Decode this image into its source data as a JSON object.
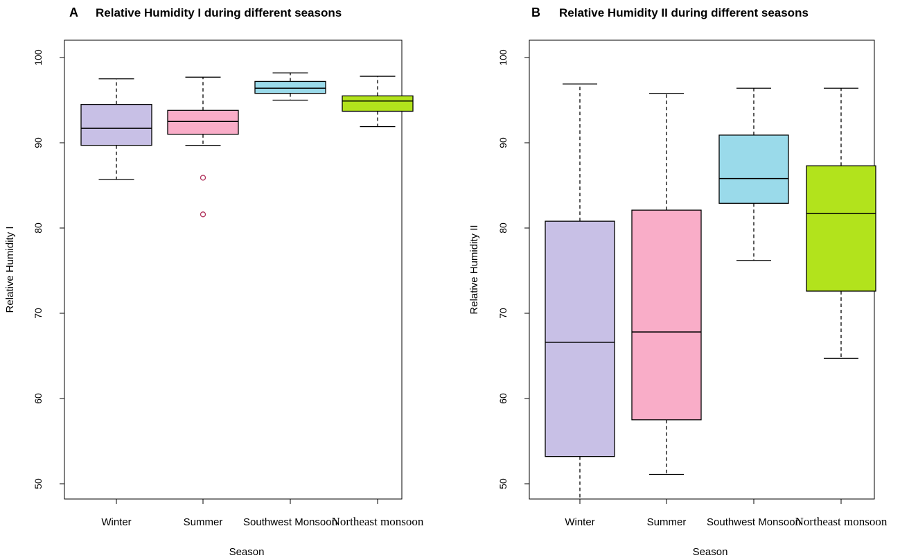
{
  "chart_data": [
    {
      "panel": "A",
      "type": "boxplot",
      "title": "Relative Humidity I during different seasons",
      "xlabel": "Season",
      "ylabel": "Relative Humidity I",
      "ylim": [
        47.5,
        101
      ],
      "yticks": [
        50,
        60,
        70,
        80,
        90,
        100
      ],
      "categories": [
        "Winter",
        "Summer",
        "Southwest Monsoon",
        "Northeast monsoon"
      ],
      "colors": [
        "#c8c0e6",
        "#f9adc8",
        "#9adaea",
        "#b2e31c"
      ],
      "boxes": [
        {
          "whisker_low": 85.7,
          "q1": 89.7,
          "median": 91.7,
          "q3": 94.5,
          "whisker_high": 97.5,
          "outliers": []
        },
        {
          "whisker_low": 89.7,
          "q1": 91.0,
          "median": 92.5,
          "q3": 93.8,
          "whisker_high": 97.7,
          "outliers": [
            85.9,
            81.6
          ]
        },
        {
          "whisker_low": 95.0,
          "q1": 95.8,
          "median": 96.4,
          "q3": 97.2,
          "whisker_high": 98.2,
          "outliers": []
        },
        {
          "whisker_low": 91.9,
          "q1": 93.7,
          "median": 94.9,
          "q3": 95.5,
          "whisker_high": 97.8,
          "outliers": []
        }
      ]
    },
    {
      "panel": "B",
      "type": "boxplot",
      "title": "Relative Humidity II during different seasons",
      "xlabel": "Season",
      "ylabel": "Relative Humidity II",
      "ylim": [
        47.5,
        101
      ],
      "yticks": [
        50,
        60,
        70,
        80,
        90,
        100
      ],
      "categories": [
        "Winter",
        "Summer",
        "Southwest Monsoon",
        "Northeast monsoon"
      ],
      "colors": [
        "#c8c0e6",
        "#f9adc8",
        "#9adaea",
        "#b2e31c"
      ],
      "boxes": [
        {
          "whisker_low": 47.5,
          "q1": 53.2,
          "median": 66.6,
          "q3": 80.8,
          "whisker_high": 96.9,
          "outliers": []
        },
        {
          "whisker_low": 51.1,
          "q1": 57.5,
          "median": 67.8,
          "q3": 82.1,
          "whisker_high": 95.8,
          "outliers": []
        },
        {
          "whisker_low": 76.2,
          "q1": 82.9,
          "median": 85.8,
          "q3": 90.9,
          "whisker_high": 96.4,
          "outliers": []
        },
        {
          "whisker_low": 64.7,
          "q1": 72.6,
          "median": 81.7,
          "q3": 87.3,
          "whisker_high": 96.4,
          "outliers": []
        }
      ]
    }
  ]
}
